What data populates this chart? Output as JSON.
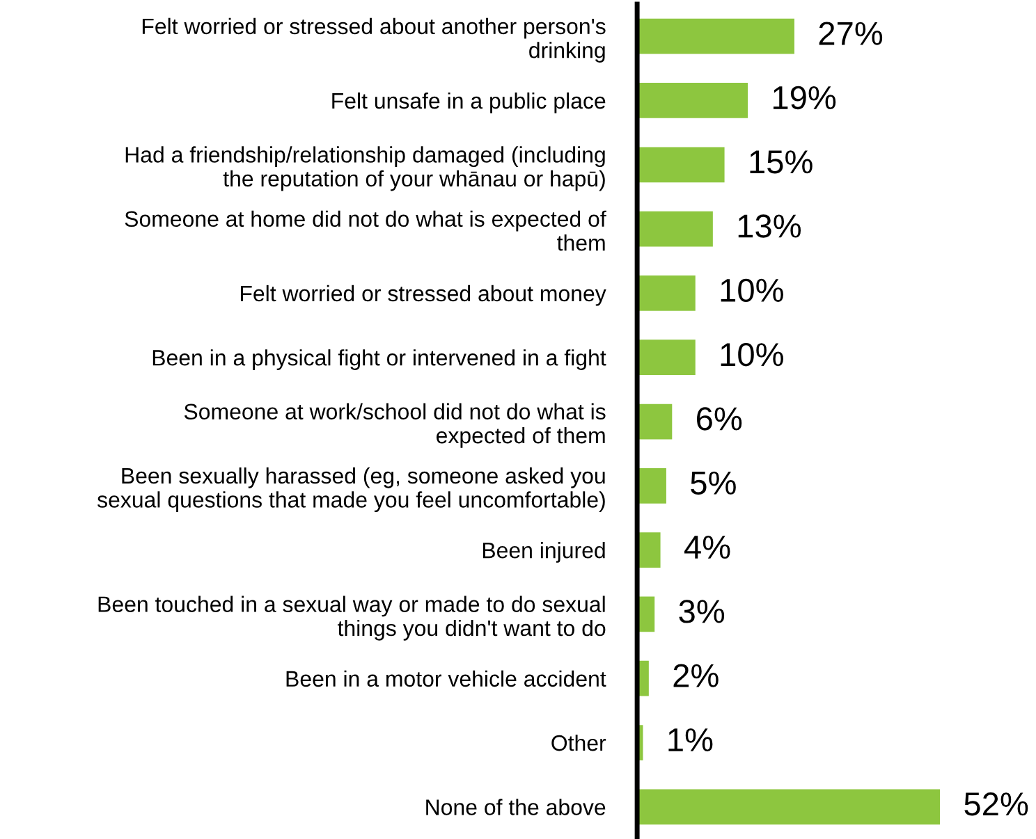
{
  "chart_data": {
    "type": "bar",
    "orientation": "horizontal",
    "categories": [
      "Felt worried or stressed about another person's\ndrinking",
      "Felt unsafe in a public place",
      "Had a friendship/relationship damaged (including\nthe reputation of your whānau or hapū)",
      "Someone at home did not do what is expected of\nthem",
      "Felt worried or stressed about money",
      "Been in a physical fight or intervened in a fight",
      "Someone at work/school did not do what is\nexpected of them",
      "Been sexually harassed (eg, someone asked you\nsexual questions that made you feel uncomfortable)",
      "Been injured",
      "Been touched in a sexual way or made to do sexual\nthings you didn't want to do",
      "Been in a motor vehicle accident",
      "Other",
      "None of the above"
    ],
    "values": [
      27,
      19,
      15,
      13,
      10,
      10,
      6,
      5,
      4,
      3,
      2,
      1,
      52
    ],
    "value_labels": [
      "27%",
      "19%",
      "15%",
      "13%",
      "10%",
      "10%",
      "6%",
      "5%",
      "4%",
      "3%",
      "2%",
      "1%",
      "52%"
    ],
    "color": "#8dc63f",
    "grid": false,
    "legend": false
  }
}
